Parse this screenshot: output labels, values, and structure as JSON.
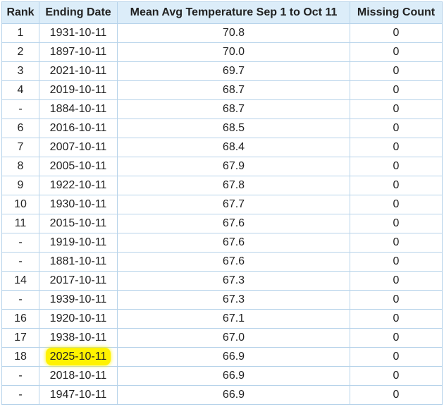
{
  "table": {
    "headers": [
      "Rank",
      "Ending Date",
      "Mean Avg Temperature Sep 1 to Oct 11",
      "Missing Count"
    ],
    "rows": [
      [
        "1",
        "1931-10-11",
        "70.8",
        "0"
      ],
      [
        "2",
        "1897-10-11",
        "70.0",
        "0"
      ],
      [
        "3",
        "2021-10-11",
        "69.7",
        "0"
      ],
      [
        "4",
        "2019-10-11",
        "68.7",
        "0"
      ],
      [
        "-",
        "1884-10-11",
        "68.7",
        "0"
      ],
      [
        "6",
        "2016-10-11",
        "68.5",
        "0"
      ],
      [
        "7",
        "2007-10-11",
        "68.4",
        "0"
      ],
      [
        "8",
        "2005-10-11",
        "67.9",
        "0"
      ],
      [
        "9",
        "1922-10-11",
        "67.8",
        "0"
      ],
      [
        "10",
        "1930-10-11",
        "67.7",
        "0"
      ],
      [
        "11",
        "2015-10-11",
        "67.6",
        "0"
      ],
      [
        "-",
        "1919-10-11",
        "67.6",
        "0"
      ],
      [
        "-",
        "1881-10-11",
        "67.6",
        "0"
      ],
      [
        "14",
        "2017-10-11",
        "67.3",
        "0"
      ],
      [
        "-",
        "1939-10-11",
        "67.3",
        "0"
      ],
      [
        "16",
        "1920-10-11",
        "67.1",
        "0"
      ],
      [
        "17",
        "1938-10-11",
        "67.0",
        "0"
      ],
      [
        "18",
        "2025-10-11",
        "66.9",
        "0"
      ],
      [
        "-",
        "2018-10-11",
        "66.9",
        "0"
      ],
      [
        "-",
        "1947-10-11",
        "66.9",
        "0"
      ]
    ]
  }
}
